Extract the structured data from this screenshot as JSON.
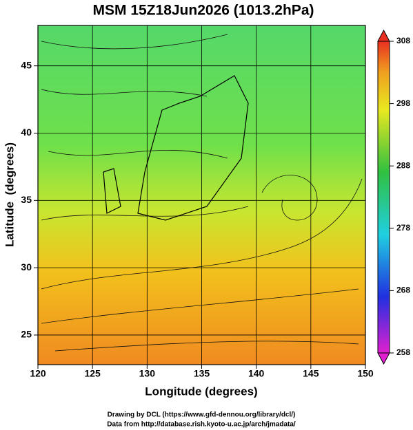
{
  "chart_data": {
    "type": "map",
    "title": "MSM 15Z18Jun2026 (1013.2hPa)",
    "xlabel": "Longitude (degrees)",
    "ylabel": "Latitude  (degrees)",
    "xlim": [
      120,
      150
    ],
    "xticks": [
      120,
      125,
      130,
      135,
      140,
      145,
      150
    ],
    "ylim": [
      22.8,
      48
    ],
    "yticks": [
      25,
      30,
      35,
      40,
      45
    ],
    "grid": true,
    "colorbar": {
      "lim": [
        258,
        308
      ],
      "ticks": [
        258,
        268,
        278,
        288,
        298,
        308
      ]
    },
    "footer": [
      "Drawing by DCL (https://www.gfd-dennou.org/library/dcl/)",
      "Data from http://database.rish.kyoto-u.ac.jp/arch/jmadata/"
    ]
  }
}
